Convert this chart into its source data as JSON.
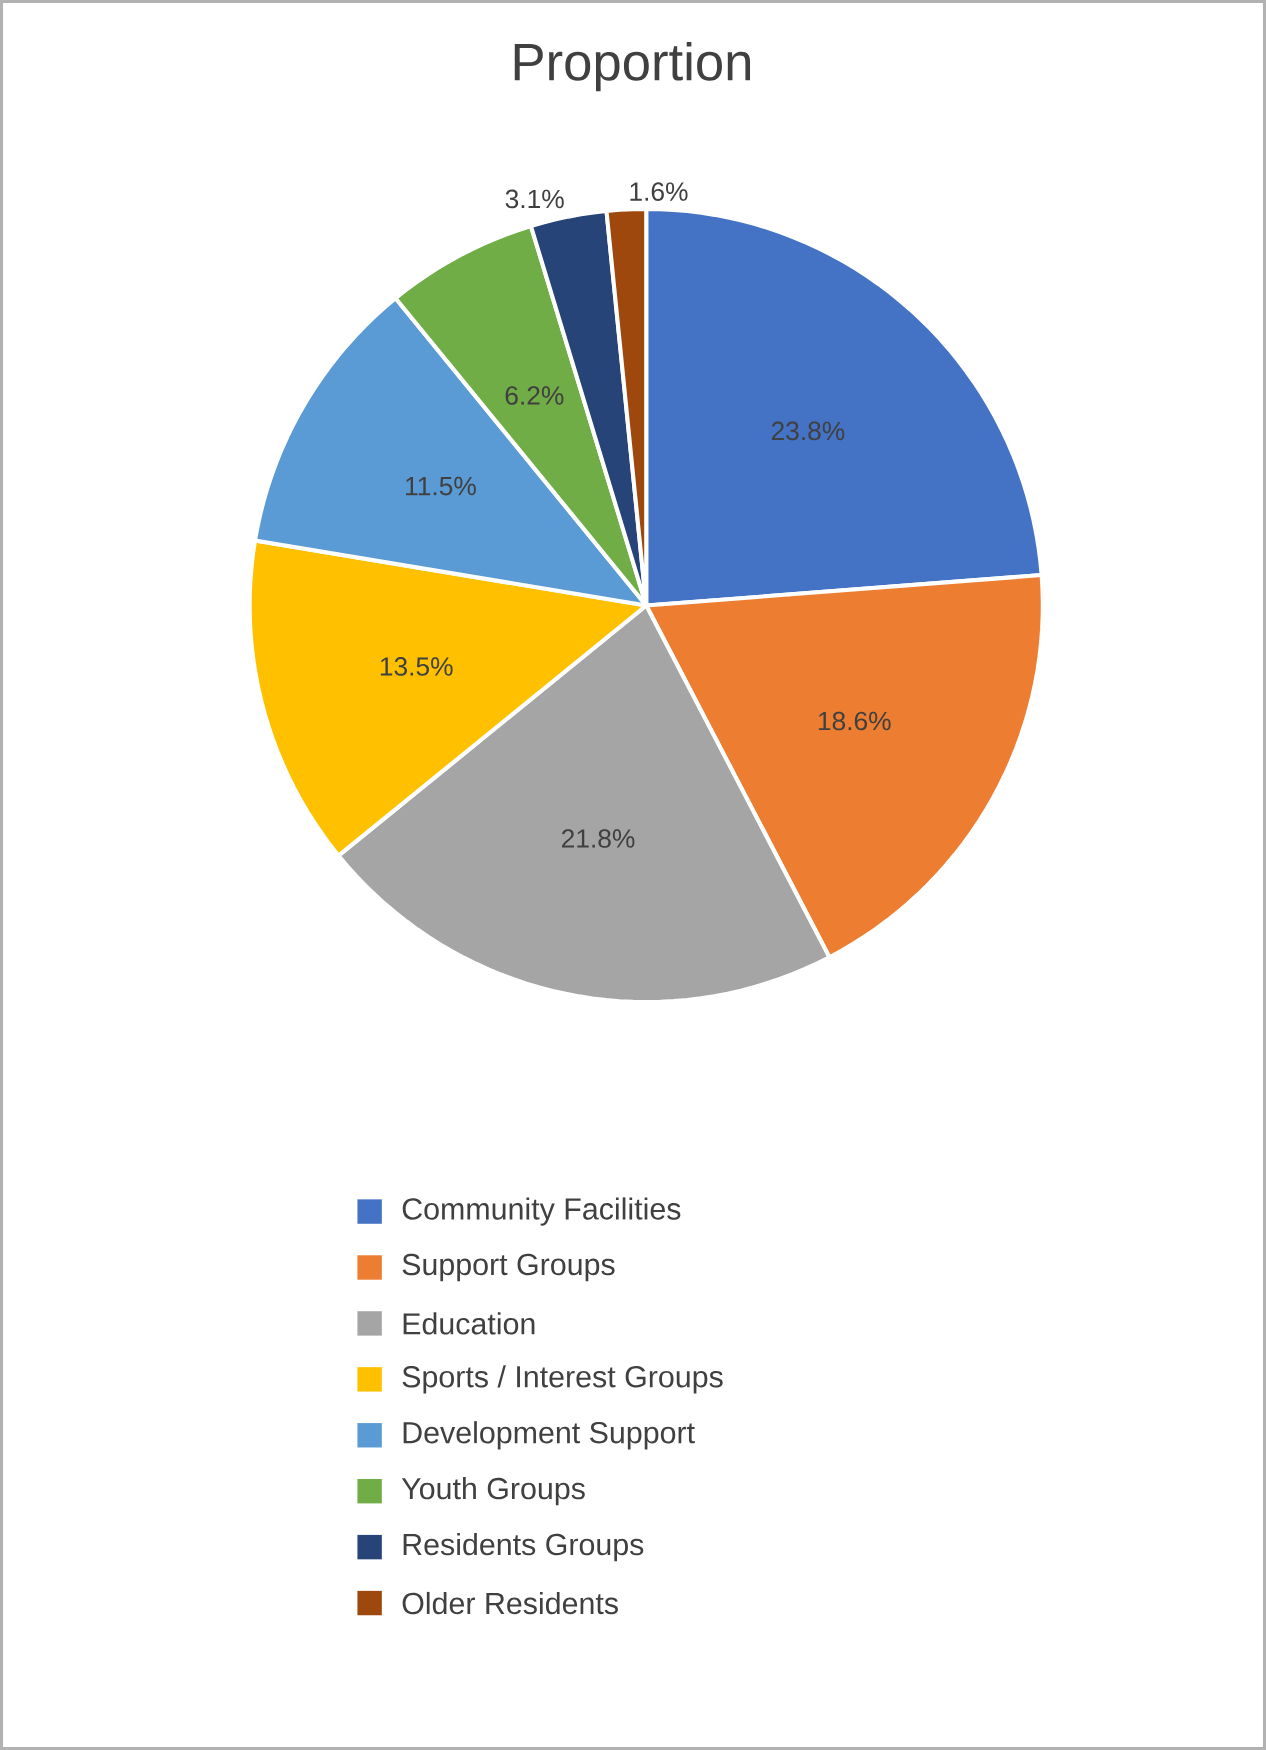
{
  "chart_data": {
    "type": "pie",
    "title": "Proportion",
    "categories": [
      "Community Facilities",
      "Support Groups",
      "Education",
      "Sports / Interest Groups",
      "Development Support",
      "Youth Groups",
      "Residents Groups",
      "Older Residents"
    ],
    "values": [
      23.8,
      18.6,
      21.8,
      13.5,
      11.5,
      6.2,
      3.1,
      1.6
    ],
    "value_labels": [
      "23.8%",
      "18.6%",
      "21.8%",
      "13.5%",
      "11.5%",
      "6.2%",
      "3.1%",
      "1.6%"
    ],
    "colors": [
      "#4472c4",
      "#ed7d31",
      "#a5a5a5",
      "#ffc000",
      "#5b9bd5",
      "#70ad47",
      "#264478",
      "#9e480e"
    ],
    "legend": "bottom"
  }
}
